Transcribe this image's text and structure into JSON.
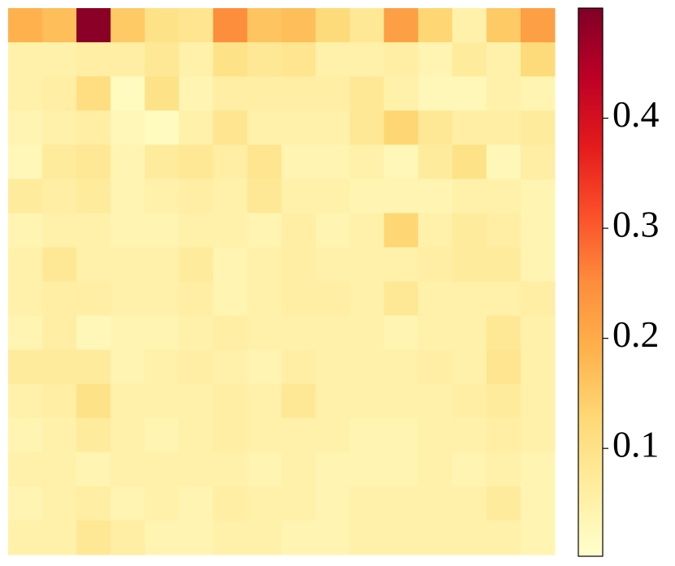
{
  "chart_data": {
    "type": "heatmap",
    "values": [
      [
        0.19,
        0.17,
        0.49,
        0.15,
        0.1,
        0.09,
        0.25,
        0.16,
        0.17,
        0.12,
        0.08,
        0.22,
        0.13,
        0.05,
        0.15,
        0.22
      ],
      [
        0.05,
        0.05,
        0.06,
        0.06,
        0.08,
        0.05,
        0.1,
        0.08,
        0.09,
        0.05,
        0.05,
        0.06,
        0.04,
        0.07,
        0.05,
        0.12
      ],
      [
        0.05,
        0.06,
        0.11,
        0.02,
        0.1,
        0.04,
        0.06,
        0.06,
        0.06,
        0.06,
        0.08,
        0.05,
        0.03,
        0.03,
        0.05,
        0.04
      ],
      [
        0.04,
        0.05,
        0.06,
        0.03,
        0.02,
        0.05,
        0.09,
        0.05,
        0.05,
        0.05,
        0.08,
        0.13,
        0.08,
        0.06,
        0.06,
        0.07
      ],
      [
        0.03,
        0.07,
        0.08,
        0.04,
        0.07,
        0.08,
        0.06,
        0.09,
        0.04,
        0.04,
        0.05,
        0.03,
        0.07,
        0.1,
        0.03,
        0.06
      ],
      [
        0.07,
        0.06,
        0.07,
        0.04,
        0.05,
        0.06,
        0.05,
        0.08,
        0.05,
        0.05,
        0.04,
        0.04,
        0.04,
        0.05,
        0.05,
        0.04
      ],
      [
        0.04,
        0.05,
        0.05,
        0.04,
        0.04,
        0.05,
        0.05,
        0.04,
        0.06,
        0.04,
        0.05,
        0.13,
        0.05,
        0.07,
        0.06,
        0.04
      ],
      [
        0.05,
        0.08,
        0.05,
        0.05,
        0.05,
        0.07,
        0.04,
        0.05,
        0.06,
        0.05,
        0.05,
        0.05,
        0.06,
        0.07,
        0.07,
        0.04
      ],
      [
        0.05,
        0.06,
        0.06,
        0.05,
        0.05,
        0.06,
        0.04,
        0.05,
        0.06,
        0.06,
        0.05,
        0.08,
        0.05,
        0.05,
        0.05,
        0.06
      ],
      [
        0.04,
        0.06,
        0.03,
        0.04,
        0.04,
        0.05,
        0.06,
        0.05,
        0.05,
        0.05,
        0.05,
        0.04,
        0.05,
        0.05,
        0.08,
        0.05
      ],
      [
        0.07,
        0.07,
        0.07,
        0.04,
        0.05,
        0.06,
        0.05,
        0.04,
        0.06,
        0.05,
        0.05,
        0.05,
        0.06,
        0.05,
        0.09,
        0.05
      ],
      [
        0.05,
        0.06,
        0.1,
        0.05,
        0.05,
        0.05,
        0.06,
        0.05,
        0.08,
        0.05,
        0.05,
        0.05,
        0.05,
        0.06,
        0.07,
        0.05
      ],
      [
        0.04,
        0.05,
        0.07,
        0.05,
        0.04,
        0.05,
        0.06,
        0.05,
        0.05,
        0.05,
        0.04,
        0.04,
        0.05,
        0.05,
        0.06,
        0.05
      ],
      [
        0.05,
        0.05,
        0.04,
        0.05,
        0.05,
        0.05,
        0.05,
        0.04,
        0.05,
        0.04,
        0.04,
        0.04,
        0.05,
        0.04,
        0.05,
        0.04
      ],
      [
        0.04,
        0.05,
        0.06,
        0.04,
        0.05,
        0.04,
        0.06,
        0.05,
        0.05,
        0.04,
        0.05,
        0.05,
        0.05,
        0.05,
        0.07,
        0.04
      ],
      [
        0.05,
        0.05,
        0.08,
        0.06,
        0.04,
        0.04,
        0.05,
        0.05,
        0.04,
        0.04,
        0.05,
        0.05,
        0.05,
        0.05,
        0.05,
        0.04
      ]
    ],
    "zlim": [
      0.002,
      0.5
    ],
    "zticks": [
      0.1,
      0.2,
      0.3,
      0.4
    ],
    "colorscale": [
      "#ffffcc",
      "#ffeda0",
      "#fed976",
      "#feb24c",
      "#fd8d3c",
      "#fc4e2a",
      "#e31a1c",
      "#bd0026",
      "#800026"
    ]
  }
}
